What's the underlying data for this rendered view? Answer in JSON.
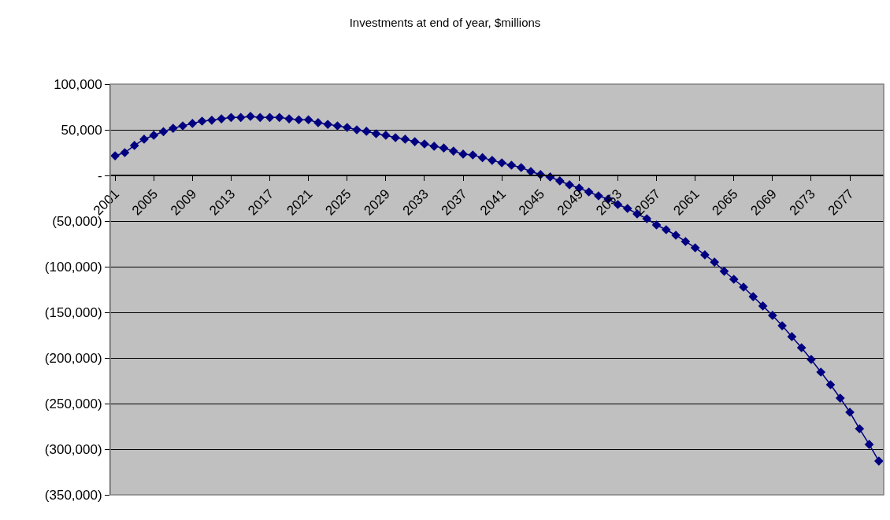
{
  "chart_data": {
    "type": "line",
    "title": "Investments at end of year, $millions",
    "categories": [
      "2001",
      null,
      null,
      null,
      "2005",
      null,
      null,
      null,
      "2009",
      null,
      null,
      null,
      "2013",
      null,
      null,
      null,
      "2017",
      null,
      null,
      null,
      "2021",
      null,
      null,
      null,
      "2025",
      null,
      null,
      null,
      "2029",
      null,
      null,
      null,
      "2033",
      null,
      null,
      null,
      "2037",
      null,
      null,
      null,
      "2041",
      null,
      null,
      null,
      "2045",
      null,
      null,
      null,
      "2049",
      null,
      null,
      null,
      "2053",
      null,
      null,
      null,
      "2057",
      null,
      null,
      null,
      "2061",
      null,
      null,
      null,
      "2065",
      null,
      null,
      null,
      "2069",
      null,
      null,
      null,
      "2073",
      null,
      null,
      null,
      "2077",
      null,
      null,
      null
    ],
    "series": [
      {
        "color": "#000080",
        "values": [
          21500,
          25000,
          32800,
          39700,
          44000,
          48000,
          51700,
          54300,
          57000,
          59500,
          60500,
          62000,
          63500,
          63500,
          64700,
          63500,
          63500,
          63500,
          62000,
          61000,
          61000,
          57800,
          56000,
          54300,
          52600,
          50000,
          48300,
          45700,
          44000,
          41400,
          39700,
          37000,
          34500,
          32000,
          30000,
          26700,
          23300,
          22400,
          19500,
          16500,
          13800,
          11200,
          8600,
          4300,
          900,
          -1700,
          -6000,
          -10300,
          -13800,
          -18100,
          -22400,
          -25900,
          -31900,
          -36200,
          -42200,
          -47400,
          -54300,
          -59500,
          -65500,
          -72400,
          -79300,
          -87000,
          -95000,
          -105000,
          -113800,
          -122400,
          -132800,
          -143000,
          -153400,
          -164700,
          -176700,
          -188800,
          -201700,
          -215500,
          -229300,
          -244000,
          -259500,
          -277600,
          -294800,
          -313000
        ]
      }
    ],
    "ylim": [
      -350000,
      100000
    ],
    "yticks": [
      {
        "value": 100000,
        "label": "100,000"
      },
      {
        "value": 50000,
        "label": "50,000"
      },
      {
        "value": 0,
        "label": "-"
      },
      {
        "value": -50000,
        "label": "(50,000)"
      },
      {
        "value": -100000,
        "label": "(100,000)"
      },
      {
        "value": -150000,
        "label": "(150,000)"
      },
      {
        "value": -200000,
        "label": "(200,000)"
      },
      {
        "value": -250000,
        "label": "(250,000)"
      },
      {
        "value": -300000,
        "label": "(300,000)"
      },
      {
        "value": -350000,
        "label": "(350,000)"
      }
    ],
    "grid": "y",
    "marker": "diamond",
    "line_style": "solid"
  }
}
